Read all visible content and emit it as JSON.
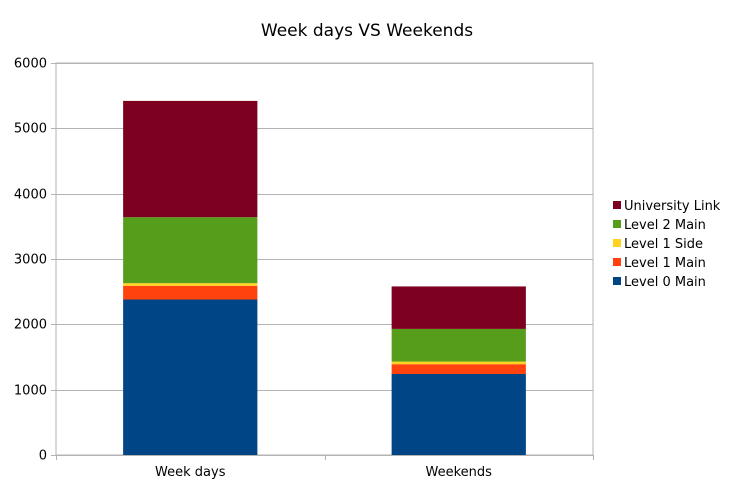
{
  "chart_data": {
    "type": "bar",
    "stacked": true,
    "title": "Week days VS Weekends",
    "xlabel": "",
    "ylabel": "",
    "categories": [
      "Week days",
      "Weekends"
    ],
    "series": [
      {
        "name": "Level 0 Main",
        "color": "#004586",
        "values": [
          2380,
          1240
        ]
      },
      {
        "name": "Level 1 Main",
        "color": "#ff420e",
        "values": [
          210,
          150
        ]
      },
      {
        "name": "Level 1 Side",
        "color": "#ffd320",
        "values": [
          40,
          40
        ]
      },
      {
        "name": "Level 2 Main",
        "color": "#579d1c",
        "values": [
          1010,
          500
        ]
      },
      {
        "name": "University Link",
        "color": "#7e0021",
        "values": [
          1780,
          650
        ]
      }
    ],
    "ylim": [
      0,
      6000
    ],
    "yticks": [
      0,
      1000,
      2000,
      3000,
      4000,
      5000,
      6000
    ],
    "grid": true,
    "legend_position": "right"
  }
}
